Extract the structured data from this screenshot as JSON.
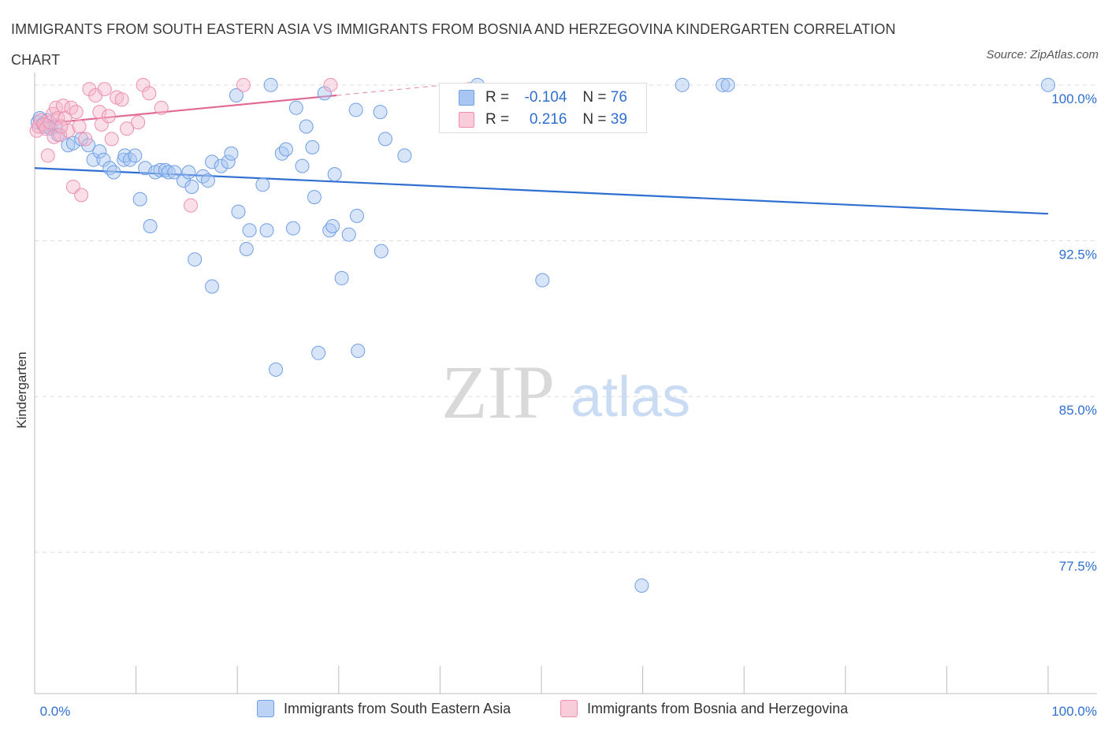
{
  "title": "IMMIGRANTS FROM SOUTH EASTERN ASIA VS IMMIGRANTS FROM BOSNIA AND HERZEGOVINA KINDERGARTEN CORRELATION CHART",
  "source": "Source: ZipAtlas.com",
  "watermark": {
    "zip": "ZIP",
    "atlas": "atlas"
  },
  "legend": {
    "rows": [
      {
        "r_label": "R =",
        "r_value": "-0.104",
        "n_label": "N =",
        "n_value": "76",
        "color": "#a9c6f2"
      },
      {
        "r_label": "R =",
        "r_value": "0.216",
        "n_label": "N =",
        "n_value": "39",
        "color": "#f5b8cb"
      }
    ]
  },
  "bottom_legend": [
    {
      "label": "Immigrants from South Eastern Asia",
      "color": "#a9c6f2"
    },
    {
      "label": "Immigrants from Bosnia and Herzegovina",
      "color": "#f5b8cb"
    }
  ],
  "chart_data": {
    "type": "scatter",
    "title": "IMMIGRANTS FROM SOUTH EASTERN ASIA VS IMMIGRANTS FROM BOSNIA AND HERZEGOVINA KINDERGARTEN CORRELATION CHART",
    "xlabel": "",
    "ylabel": "Kindergarten",
    "xlim": [
      0,
      100
    ],
    "ylim": [
      70.7,
      100.6
    ],
    "x_tick_labels": [
      "0.0%",
      "100.0%"
    ],
    "y_ticks": [
      {
        "value": 100.0,
        "label": "100.0%"
      },
      {
        "value": 92.5,
        "label": "92.5%"
      },
      {
        "value": 85.0,
        "label": "85.0%"
      },
      {
        "value": 77.5,
        "label": "77.5%"
      }
    ],
    "grid": true,
    "legend_position": "top-center",
    "series": [
      {
        "name": "Immigrants from South Eastern Asia",
        "color": "#6f9fe6",
        "trend": {
          "x": [
            0,
            100
          ],
          "y": [
            96.0,
            93.8
          ],
          "color": "#2f6fd1"
        },
        "points": [
          [
            0.3,
            98.2
          ],
          [
            0.5,
            98.4
          ],
          [
            0.8,
            98.1
          ],
          [
            1.0,
            98.0
          ],
          [
            1.3,
            98.3
          ],
          [
            1.6,
            97.9
          ],
          [
            2.0,
            98.0
          ],
          [
            2.3,
            97.6
          ],
          [
            3.3,
            97.1
          ],
          [
            3.8,
            97.2
          ],
          [
            4.6,
            97.4
          ],
          [
            5.3,
            97.1
          ],
          [
            5.8,
            96.4
          ],
          [
            6.4,
            96.8
          ],
          [
            6.8,
            96.4
          ],
          [
            7.4,
            96.0
          ],
          [
            7.8,
            95.8
          ],
          [
            8.8,
            96.4
          ],
          [
            8.9,
            96.6
          ],
          [
            9.4,
            96.4
          ],
          [
            9.9,
            96.6
          ],
          [
            10.4,
            94.5
          ],
          [
            10.9,
            96.0
          ],
          [
            11.4,
            93.2
          ],
          [
            11.9,
            95.8
          ],
          [
            12.4,
            95.9
          ],
          [
            12.9,
            95.9
          ],
          [
            13.2,
            95.8
          ],
          [
            13.8,
            95.8
          ],
          [
            14.7,
            95.4
          ],
          [
            15.2,
            95.8
          ],
          [
            15.5,
            95.1
          ],
          [
            15.8,
            91.6
          ],
          [
            16.6,
            95.6
          ],
          [
            17.1,
            95.4
          ],
          [
            17.5,
            96.3
          ],
          [
            17.5,
            90.3
          ],
          [
            18.4,
            96.1
          ],
          [
            19.1,
            96.3
          ],
          [
            19.4,
            96.7
          ],
          [
            19.9,
            99.5
          ],
          [
            20.1,
            93.9
          ],
          [
            20.9,
            92.1
          ],
          [
            21.2,
            93.0
          ],
          [
            22.5,
            95.2
          ],
          [
            22.9,
            93.0
          ],
          [
            23.3,
            100.0
          ],
          [
            23.8,
            86.3
          ],
          [
            24.4,
            96.7
          ],
          [
            24.8,
            96.9
          ],
          [
            25.5,
            93.1
          ],
          [
            25.8,
            98.9
          ],
          [
            26.4,
            96.1
          ],
          [
            26.8,
            98.0
          ],
          [
            27.4,
            97.0
          ],
          [
            27.6,
            94.6
          ],
          [
            28.0,
            87.1
          ],
          [
            28.6,
            99.6
          ],
          [
            29.1,
            93.0
          ],
          [
            29.4,
            93.2
          ],
          [
            29.6,
            95.7
          ],
          [
            30.3,
            90.7
          ],
          [
            31.0,
            92.8
          ],
          [
            31.8,
            93.7
          ],
          [
            31.7,
            98.8
          ],
          [
            31.9,
            87.2
          ],
          [
            34.1,
            98.7
          ],
          [
            34.2,
            92.0
          ],
          [
            34.6,
            97.4
          ],
          [
            36.5,
            96.6
          ],
          [
            43.7,
            100.0
          ],
          [
            50.1,
            90.6
          ],
          [
            59.9,
            75.9
          ],
          [
            63.9,
            100.0
          ],
          [
            67.9,
            100.0
          ],
          [
            68.4,
            100.0
          ],
          [
            100.0,
            100.0
          ]
        ]
      },
      {
        "name": "Immigrants from Bosnia and Herzegovina",
        "color": "#ef8fb0",
        "trend": {
          "x": [
            0,
            29.8
          ],
          "y": [
            98.1,
            99.5
          ],
          "color": "#e06a93",
          "extend_to_x": 43.5
        },
        "points": [
          [
            0.2,
            97.8
          ],
          [
            0.4,
            98.0
          ],
          [
            0.6,
            98.3
          ],
          [
            0.9,
            98.1
          ],
          [
            1.1,
            97.9
          ],
          [
            1.3,
            96.6
          ],
          [
            1.5,
            98.2
          ],
          [
            1.8,
            98.6
          ],
          [
            1.9,
            97.5
          ],
          [
            2.1,
            98.9
          ],
          [
            2.3,
            98.4
          ],
          [
            2.5,
            97.6
          ],
          [
            2.8,
            99.0
          ],
          [
            3.0,
            98.4
          ],
          [
            3.3,
            97.8
          ],
          [
            3.6,
            98.9
          ],
          [
            3.8,
            95.1
          ],
          [
            4.1,
            98.7
          ],
          [
            4.4,
            98.0
          ],
          [
            4.6,
            94.7
          ],
          [
            5.0,
            97.4
          ],
          [
            5.4,
            99.8
          ],
          [
            6.0,
            99.5
          ],
          [
            6.4,
            98.7
          ],
          [
            6.6,
            98.1
          ],
          [
            6.9,
            99.8
          ],
          [
            7.3,
            98.5
          ],
          [
            7.6,
            97.4
          ],
          [
            8.1,
            99.4
          ],
          [
            8.6,
            99.3
          ],
          [
            9.1,
            97.9
          ],
          [
            10.2,
            98.2
          ],
          [
            10.7,
            100.0
          ],
          [
            11.3,
            99.6
          ],
          [
            12.5,
            98.9
          ],
          [
            15.4,
            94.2
          ],
          [
            20.6,
            100.0
          ],
          [
            29.2,
            100.0
          ],
          [
            2.6,
            98.0
          ]
        ]
      }
    ]
  }
}
